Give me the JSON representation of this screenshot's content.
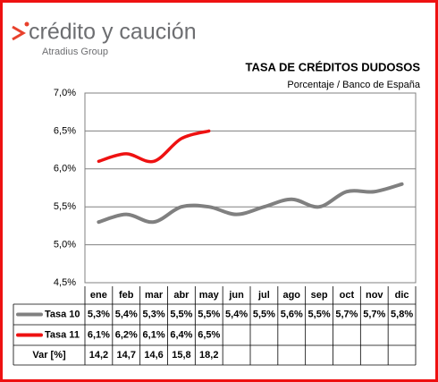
{
  "logo": {
    "name": "crédito y caución",
    "group": "Atradius Group"
  },
  "chart_data": {
    "type": "line",
    "title": "TASA DE CRÉDITOS DUDOSOS",
    "subtitle": "Porcentaje / Banco de España",
    "categories": [
      "ene",
      "feb",
      "mar",
      "abr",
      "may",
      "jun",
      "jul",
      "ago",
      "sep",
      "oct",
      "nov",
      "dic"
    ],
    "series": [
      {
        "name": "Tasa 10",
        "color": "#808080",
        "values": [
          5.3,
          5.4,
          5.3,
          5.5,
          5.5,
          5.4,
          5.5,
          5.6,
          5.5,
          5.7,
          5.7,
          5.8
        ],
        "value_labels": [
          "5,3%",
          "5,4%",
          "5,3%",
          "5,5%",
          "5,5%",
          "5,4%",
          "5,5%",
          "5,6%",
          "5,5%",
          "5,7%",
          "5,7%",
          "5,8%"
        ]
      },
      {
        "name": "Tasa 11",
        "color": "#ee1111",
        "values": [
          6.1,
          6.2,
          6.1,
          6.4,
          6.5,
          null,
          null,
          null,
          null,
          null,
          null,
          null
        ],
        "value_labels": [
          "6,1%",
          "6,2%",
          "6,1%",
          "6,4%",
          "6,5%",
          null,
          null,
          null,
          null,
          null,
          null,
          null
        ]
      }
    ],
    "var_row": {
      "label": "Var [%]",
      "values": [
        14.2,
        14.7,
        14.6,
        15.8,
        18.2
      ],
      "value_labels": [
        "14,2",
        "14,7",
        "14,6",
        "15,8",
        "18,2"
      ]
    },
    "ylim": [
      4.5,
      7.0
    ],
    "yticks": [
      {
        "value": 4.5,
        "label": "4,5%"
      },
      {
        "value": 5.0,
        "label": "5,0%"
      },
      {
        "value": 5.5,
        "label": "5,5%"
      },
      {
        "value": 6.0,
        "label": "6,0%"
      },
      {
        "value": 6.5,
        "label": "6,5%"
      },
      {
        "value": 7.0,
        "label": "7,0%"
      }
    ],
    "grid": true
  }
}
